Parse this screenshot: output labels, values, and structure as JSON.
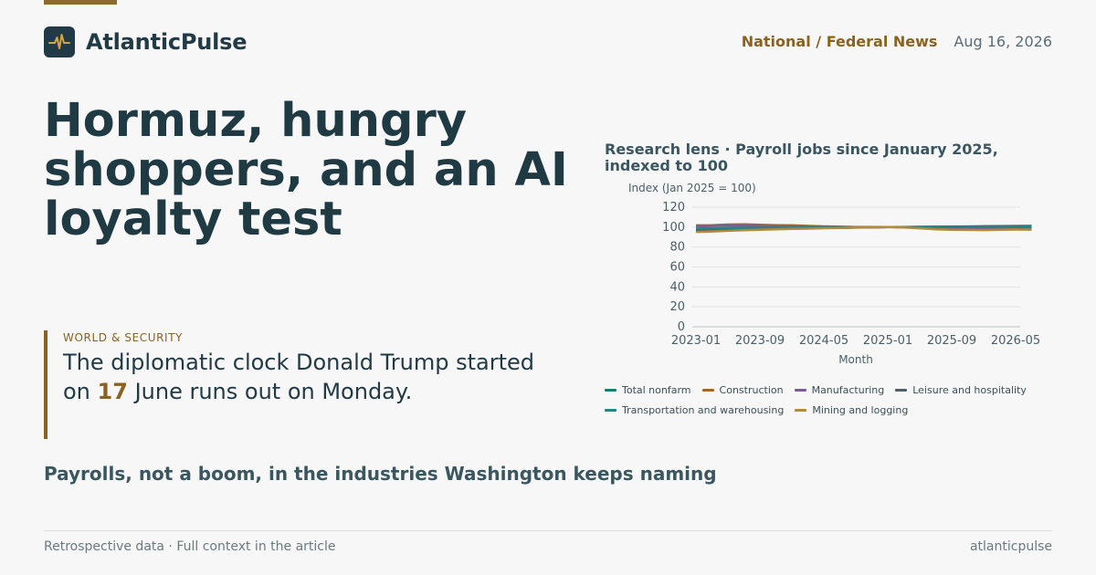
{
  "brand": {
    "name": "AtlanticPulse",
    "icon": "pulse-icon"
  },
  "header": {
    "section": "National / Federal News",
    "date": "Aug 16, 2026"
  },
  "article": {
    "headline": "Hormuz, hungry shoppers, and an AI loyalty test",
    "kicker": "WORLD & SECURITY",
    "deck_before": "The diplomatic clock Donald Trump started on ",
    "deck_number": "17",
    "deck_after": " June runs out on Monday.",
    "takeaway": "Payrolls, not a boom, in the industries Washington keeps naming"
  },
  "footer": {
    "note": "Retrospective data · Full context in the article",
    "site": "atlanticpulse"
  },
  "colors": {
    "accent": "#8b6220",
    "ink": "#1f3a43",
    "background": "#f6f7f6"
  },
  "chart_data": {
    "type": "line",
    "title": "Research lens · Payroll jobs since January 2025, indexed to 100",
    "ylabel": "Index (Jan 2025 = 100)",
    "xlabel": "Month",
    "ylim": [
      0,
      120
    ],
    "yticks": [
      0,
      20,
      40,
      60,
      80,
      100,
      120
    ],
    "xticks": [
      "2023-01",
      "2023-09",
      "2024-05",
      "2025-01",
      "2025-09",
      "2026-05"
    ],
    "grid": true,
    "legend_position": "bottom",
    "x": [
      "2023-01",
      "2023-03",
      "2023-05",
      "2023-07",
      "2023-09",
      "2023-11",
      "2024-01",
      "2024-03",
      "2024-05",
      "2024-07",
      "2024-09",
      "2024-11",
      "2025-01",
      "2025-03",
      "2025-05",
      "2025-07",
      "2025-09",
      "2025-11",
      "2026-01",
      "2026-03",
      "2026-05",
      "2026-07"
    ],
    "series": [
      {
        "name": "Total nonfarm",
        "color": "#1f7a70",
        "values": [
          97.5,
          97.7,
          97.9,
          98.1,
          98.3,
          98.5,
          98.7,
          98.9,
          99.1,
          99.3,
          99.5,
          99.8,
          100.0,
          100.1,
          100.2,
          100.3,
          100.4,
          100.5,
          100.6,
          100.6,
          100.7,
          100.7
        ]
      },
      {
        "name": "Construction",
        "color": "#a0692b",
        "values": [
          101.8,
          101.9,
          102.6,
          102.8,
          102.4,
          102.0,
          101.8,
          101.2,
          100.8,
          100.4,
          100.1,
          99.9,
          100.0,
          100.1,
          99.8,
          99.2,
          98.8,
          98.9,
          98.6,
          98.8,
          98.9,
          98.7
        ]
      },
      {
        "name": "Manufacturing",
        "color": "#7a5c96",
        "values": [
          100.9,
          101.1,
          101.3,
          101.2,
          101.0,
          100.8,
          100.6,
          100.5,
          100.3,
          100.2,
          100.1,
          100.0,
          100.0,
          99.8,
          99.6,
          99.4,
          99.3,
          99.2,
          99.0,
          98.9,
          98.8,
          98.8
        ]
      },
      {
        "name": "Leisure and hospitality",
        "color": "#4e5d66",
        "values": [
          96.0,
          96.4,
          96.9,
          97.3,
          97.7,
          98.1,
          98.5,
          98.8,
          99.1,
          99.3,
          99.6,
          99.8,
          100.0,
          100.1,
          100.3,
          100.4,
          100.6,
          100.7,
          100.9,
          101.0,
          101.1,
          101.2
        ]
      },
      {
        "name": "Transportation and warehousing",
        "color": "#24877f",
        "values": [
          98.6,
          98.8,
          99.0,
          99.1,
          99.2,
          99.3,
          99.4,
          99.5,
          99.6,
          99.7,
          99.8,
          99.9,
          100.0,
          100.0,
          99.9,
          100.0,
          100.1,
          100.2,
          100.1,
          100.2,
          100.3,
          100.3
        ]
      },
      {
        "name": "Mining and logging",
        "color": "#b08a3e",
        "values": [
          95.2,
          95.6,
          96.3,
          96.8,
          97.4,
          97.8,
          98.2,
          98.5,
          98.9,
          99.2,
          99.6,
          99.8,
          100.0,
          99.6,
          98.8,
          97.8,
          97.4,
          97.2,
          97.0,
          97.4,
          97.6,
          97.5
        ]
      }
    ]
  }
}
